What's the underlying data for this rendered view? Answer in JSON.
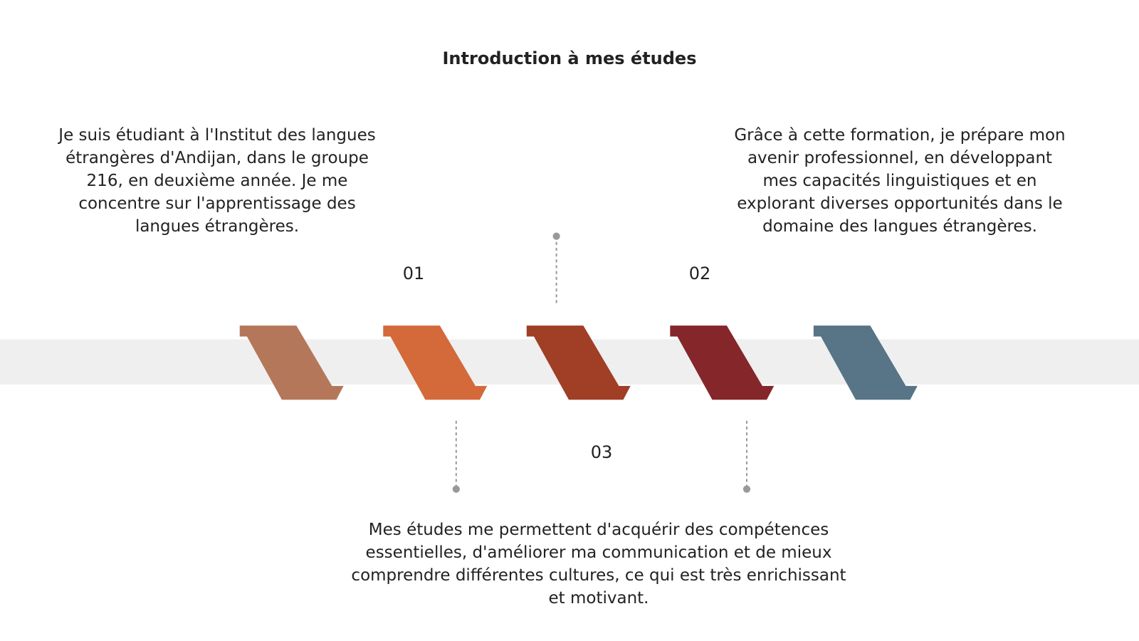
{
  "title": "Introduction à mes études",
  "steps": [
    {
      "number": "01",
      "text": "Je suis étudiant à l'Institut des langues étrangères d'Andijan, dans le groupe 216, en deuxième année. Je me concentre sur l'apprentissage des langues étrangères."
    },
    {
      "number": "02",
      "text": "Grâce à cette formation, je prépare mon avenir professionnel, en développant mes capacités linguistiques et en explorant diverses opportunités dans le domaine des langues étrangères."
    },
    {
      "number": "03",
      "text": "Mes études me permettent d'acquérir des compétences essentielles, d'améliorer ma communication et de mieux comprendre différentes cultures, ce qui est très enrichissant et motivant."
    }
  ]
}
